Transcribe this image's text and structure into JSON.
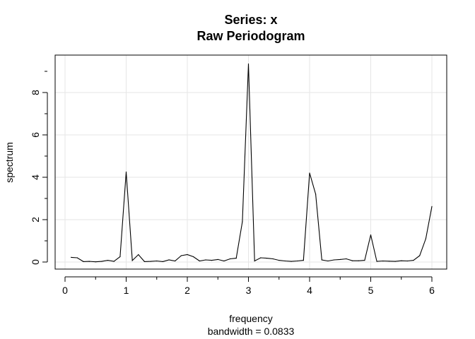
{
  "chart_data": {
    "type": "line",
    "title": "Series: x",
    "subtitle": "Raw Periodogram",
    "xlabel": "frequency",
    "xlabel_sub": "bandwidth = 0.0833",
    "ylabel": "spectrum",
    "xlim": [
      0,
      6
    ],
    "ylim": [
      0,
      9.3
    ],
    "x_ticks": [
      0,
      1,
      2,
      3,
      4,
      5,
      6
    ],
    "y_ticks": [
      0,
      2,
      4,
      6,
      8
    ],
    "grid": true,
    "line_color": "#000000",
    "grid_color": "#e6e6e6",
    "x": [
      0.1,
      0.2,
      0.3,
      0.4,
      0.5,
      0.6,
      0.7,
      0.8,
      0.9,
      1.0,
      1.1,
      1.2,
      1.3,
      1.4,
      1.5,
      1.6,
      1.7,
      1.8,
      1.9,
      2.0,
      2.1,
      2.2,
      2.3,
      2.4,
      2.5,
      2.6,
      2.7,
      2.8,
      2.9,
      3.0,
      3.1,
      3.2,
      3.3,
      3.4,
      3.5,
      3.6,
      3.7,
      3.8,
      3.9,
      4.0,
      4.1,
      4.2,
      4.3,
      4.4,
      4.5,
      4.6,
      4.7,
      4.8,
      4.9,
      5.0,
      5.1,
      5.2,
      5.3,
      5.4,
      5.5,
      5.6,
      5.7,
      5.8,
      5.9,
      6.0
    ],
    "y": [
      0.22,
      0.2,
      0.02,
      0.03,
      0.01,
      0.03,
      0.08,
      0.03,
      0.25,
      4.25,
      0.07,
      0.35,
      0.02,
      0.03,
      0.05,
      0.02,
      0.1,
      0.05,
      0.3,
      0.35,
      0.25,
      0.05,
      0.1,
      0.08,
      0.12,
      0.05,
      0.15,
      0.18,
      1.9,
      9.35,
      0.05,
      0.2,
      0.18,
      0.15,
      0.08,
      0.05,
      0.03,
      0.05,
      0.08,
      4.2,
      3.2,
      0.1,
      0.05,
      0.1,
      0.12,
      0.15,
      0.06,
      0.06,
      0.08,
      1.28,
      0.03,
      0.05,
      0.04,
      0.03,
      0.06,
      0.05,
      0.08,
      0.3,
      1.1,
      2.62
    ]
  }
}
